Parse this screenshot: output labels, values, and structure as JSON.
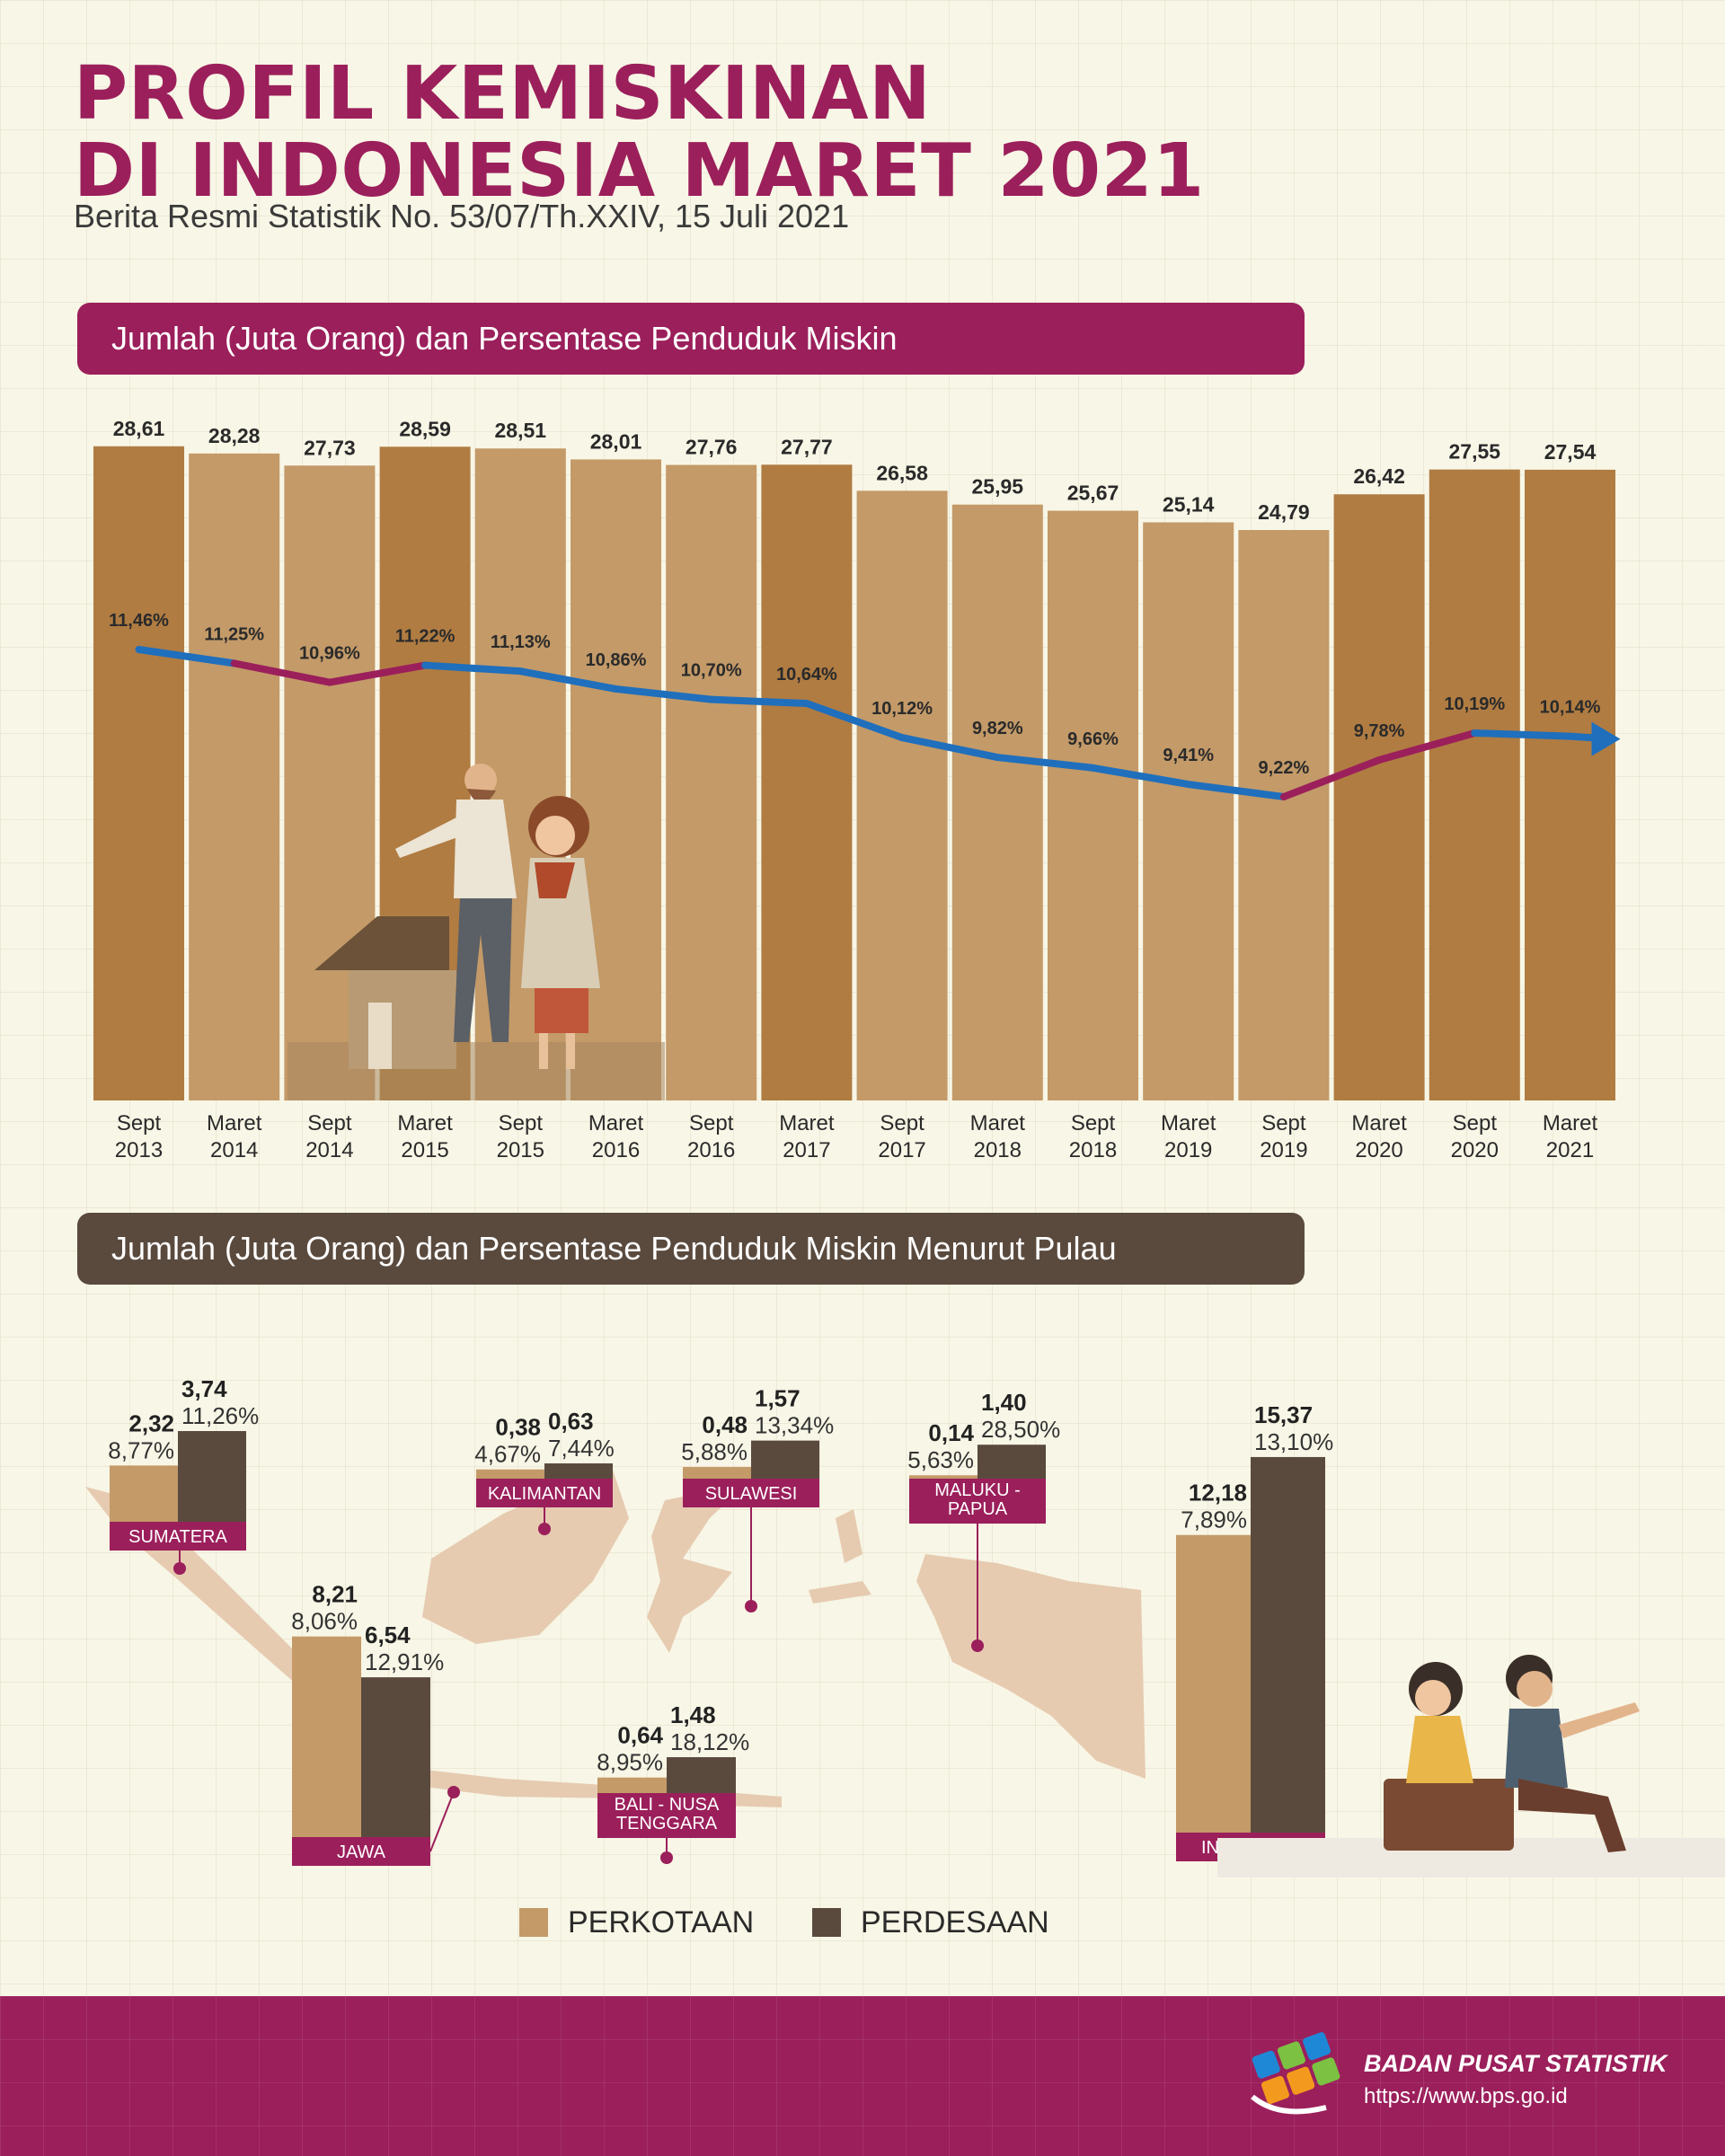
{
  "header": {
    "title_line1": "PROFIL KEMISKINAN",
    "title_line2": "DI INDONESIA MARET 2021",
    "subtitle": "Berita Resmi Statistik No. 53/07/Th.XXIV, 15 Juli 2021"
  },
  "sections": {
    "trend_title": "Jumlah (Juta Orang) dan Persentase Penduduk Miskin",
    "island_title": "Jumlah (Juta Orang) dan Persentase Penduduk Miskin Menurut Pulau"
  },
  "colors": {
    "brand": "#9b1f5b",
    "bar_dark": "#b07c42",
    "bar_light": "#c39a68",
    "line_blue": "#1f6fbd",
    "line_purple": "#9b1f5b",
    "urban": "#c39a68",
    "rural": "#5a4a3e",
    "label_bg": "#9b1f5b"
  },
  "legend": {
    "urban": "PERKOTAAN",
    "rural": "PERDESAAN"
  },
  "footer": {
    "org": "BADAN PUSAT STATISTIK",
    "url": "https://www.bps.go.id"
  },
  "chart_data": [
    {
      "type": "bar",
      "categories": [
        "Sept 2013",
        "Maret 2014",
        "Sept 2014",
        "Maret 2015",
        "Sept 2015",
        "Maret 2016",
        "Sept 2016",
        "Maret 2017",
        "Sept 2017",
        "Maret 2018",
        "Sept 2018",
        "Maret 2019",
        "Sept 2019",
        "Maret 2020",
        "Sept 2020",
        "Maret 2021"
      ],
      "category_lines": [
        [
          "Sept",
          "2013"
        ],
        [
          "Maret",
          "2014"
        ],
        [
          "Sept",
          "2014"
        ],
        [
          "Maret",
          "2015"
        ],
        [
          "Sept",
          "2015"
        ],
        [
          "Maret",
          "2016"
        ],
        [
          "Sept",
          "2016"
        ],
        [
          "Maret",
          "2017"
        ],
        [
          "Sept",
          "2017"
        ],
        [
          "Maret",
          "2018"
        ],
        [
          "Sept",
          "2018"
        ],
        [
          "Maret",
          "2019"
        ],
        [
          "Sept",
          "2019"
        ],
        [
          "Maret",
          "2020"
        ],
        [
          "Sept",
          "2020"
        ],
        [
          "Maret",
          "2021"
        ]
      ],
      "bar_values": [
        28.61,
        28.28,
        27.73,
        28.59,
        28.51,
        28.01,
        27.76,
        27.77,
        26.58,
        25.95,
        25.67,
        25.14,
        24.79,
        26.42,
        27.55,
        27.54
      ],
      "bar_labels": [
        "28,61",
        "28,28",
        "27,73",
        "28,59",
        "28,51",
        "28,01",
        "27,76",
        "27,77",
        "26,58",
        "25,95",
        "25,67",
        "25,14",
        "24,79",
        "26,42",
        "27,55",
        "27,54"
      ],
      "bar_shade": [
        "dark",
        "light",
        "light",
        "dark",
        "light",
        "light",
        "light",
        "dark",
        "light",
        "light",
        "light",
        "light",
        "light",
        "dark",
        "dark",
        "dark"
      ],
      "line_values": [
        11.46,
        11.25,
        10.96,
        11.22,
        11.13,
        10.86,
        10.7,
        10.64,
        10.12,
        9.82,
        9.66,
        9.41,
        9.22,
        9.78,
        10.19,
        10.14
      ],
      "line_labels": [
        "11,46%",
        "11,25%",
        "10,96%",
        "11,22%",
        "11,13%",
        "10,86%",
        "10,70%",
        "10,64%",
        "10,12%",
        "9,82%",
        "9,66%",
        "9,41%",
        "9,22%",
        "9,78%",
        "10,19%",
        "10,14%"
      ],
      "increase_segments": [
        [
          1,
          2
        ],
        [
          2,
          3
        ],
        [
          12,
          13
        ],
        [
          13,
          14
        ]
      ],
      "units": {
        "bars": "Juta Orang",
        "line": "%"
      }
    },
    {
      "type": "bar",
      "series": [
        {
          "name": "PERKOTAAN"
        },
        {
          "name": "PERDESAAN"
        }
      ],
      "groups": [
        {
          "name": "SUMATERA",
          "urban": 2.32,
          "urban_label": "2,32",
          "urban_pct": "8,77%",
          "rural": 3.74,
          "rural_label": "3,74",
          "rural_pct": "11,26%"
        },
        {
          "name": "JAWA",
          "urban": 8.21,
          "urban_label": "8,21",
          "urban_pct": "8,06%",
          "rural": 6.54,
          "rural_label": "6,54",
          "rural_pct": "12,91%"
        },
        {
          "name": "KALIMANTAN",
          "urban": 0.38,
          "urban_label": "0,38",
          "urban_pct": "4,67%",
          "rural": 0.63,
          "rural_label": "0,63",
          "rural_pct": "7,44%"
        },
        {
          "name": "SULAWESI",
          "urban": 0.48,
          "urban_label": "0,48",
          "urban_pct": "5,88%",
          "rural": 1.57,
          "rural_label": "1,57",
          "rural_pct": "13,34%"
        },
        {
          "name": "BALI - NUSA TENGGARA",
          "name_lines": [
            "BALI - NUSA",
            "TENGGARA"
          ],
          "urban": 0.64,
          "urban_label": "0,64",
          "urban_pct": "8,95%",
          "rural": 1.48,
          "rural_label": "1,48",
          "rural_pct": "18,12%"
        },
        {
          "name": "MALUKU - PAPUA",
          "name_lines": [
            "MALUKU -",
            "PAPUA"
          ],
          "urban": 0.14,
          "urban_label": "0,14",
          "urban_pct": "5,63%",
          "rural": 1.4,
          "rural_label": "1,40",
          "rural_pct": "28,50%"
        },
        {
          "name": "INDONESIA",
          "urban": 12.18,
          "urban_label": "12,18",
          "urban_pct": "7,89%",
          "rural": 15.37,
          "rural_label": "15,37",
          "rural_pct": "13,10%"
        }
      ]
    }
  ]
}
